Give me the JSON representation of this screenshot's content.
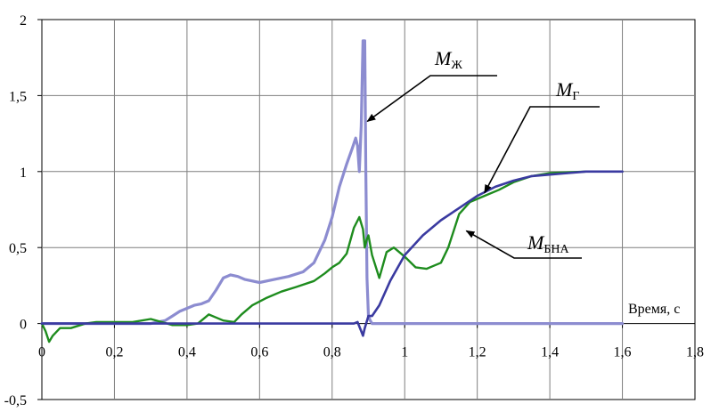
{
  "chart_data": {
    "type": "line",
    "title": "",
    "xlabel": "Время, с",
    "ylabel": "",
    "xlim": [
      0,
      1.8
    ],
    "ylim": [
      -0.5,
      2
    ],
    "grid": true,
    "x_ticks": [
      "0",
      "0,2",
      "0,4",
      "0,6",
      "0,8",
      "1",
      "1,2",
      "1,4",
      "1,6",
      "1,8"
    ],
    "y_ticks": [
      "-0,5",
      "0",
      "0,5",
      "1",
      "1,5",
      "2"
    ],
    "colors": {
      "zh": "#8c8cd0",
      "g": "#3a3aa0",
      "bna": "#1e8c1e",
      "grid": "#7f7f7f"
    },
    "annotations": [
      {
        "series": "zh",
        "base": "M",
        "sub": "Ж"
      },
      {
        "series": "g",
        "base": "M",
        "sub": "Г"
      },
      {
        "series": "bna",
        "base": "M",
        "sub": "БНА"
      }
    ],
    "series": [
      {
        "id": "zh",
        "x": [
          0,
          0.3,
          0.34,
          0.36,
          0.38,
          0.4,
          0.42,
          0.44,
          0.46,
          0.48,
          0.5,
          0.52,
          0.54,
          0.56,
          0.6,
          0.64,
          0.68,
          0.72,
          0.75,
          0.78,
          0.8,
          0.82,
          0.84,
          0.855,
          0.865,
          0.87,
          0.875,
          0.88,
          0.885,
          0.89,
          0.893,
          0.896,
          0.9,
          0.905,
          0.91,
          0.92,
          0.93,
          0.95,
          0.98,
          1.0,
          1.6
        ],
        "y": [
          0,
          0,
          0.02,
          0.05,
          0.08,
          0.1,
          0.12,
          0.13,
          0.15,
          0.22,
          0.3,
          0.32,
          0.31,
          0.29,
          0.27,
          0.29,
          0.31,
          0.34,
          0.4,
          0.55,
          0.7,
          0.9,
          1.05,
          1.15,
          1.22,
          1.17,
          1.0,
          1.3,
          1.86,
          1.86,
          1.0,
          0.3,
          0.05,
          0.02,
          0.0,
          0.0,
          0.0,
          0.0,
          0.0,
          0.0,
          0.0
        ]
      },
      {
        "id": "g",
        "x": [
          0,
          0.86,
          0.87,
          0.88,
          0.885,
          0.89,
          0.9,
          0.91,
          0.93,
          0.96,
          1.0,
          1.05,
          1.1,
          1.15,
          1.2,
          1.25,
          1.3,
          1.35,
          1.4,
          1.45,
          1.5,
          1.6
        ],
        "y": [
          0,
          0,
          0.01,
          -0.05,
          -0.08,
          -0.03,
          0.05,
          0.05,
          0.12,
          0.28,
          0.45,
          0.58,
          0.68,
          0.76,
          0.84,
          0.9,
          0.94,
          0.97,
          0.98,
          0.99,
          1.0,
          1.0
        ]
      },
      {
        "id": "bna",
        "x": [
          0,
          0.01,
          0.02,
          0.03,
          0.05,
          0.08,
          0.12,
          0.15,
          0.2,
          0.25,
          0.3,
          0.33,
          0.36,
          0.4,
          0.43,
          0.46,
          0.48,
          0.5,
          0.53,
          0.55,
          0.58,
          0.62,
          0.66,
          0.7,
          0.75,
          0.78,
          0.8,
          0.82,
          0.84,
          0.86,
          0.875,
          0.885,
          0.89,
          0.895,
          0.9,
          0.91,
          0.93,
          0.95,
          0.97,
          1.0,
          1.03,
          1.06,
          1.08,
          1.1,
          1.12,
          1.15,
          1.18,
          1.22,
          1.26,
          1.3,
          1.35,
          1.4,
          1.5,
          1.6
        ],
        "y": [
          0,
          -0.05,
          -0.12,
          -0.08,
          -0.03,
          -0.03,
          0.0,
          0.01,
          0.01,
          0.01,
          0.03,
          0.01,
          -0.01,
          -0.01,
          0.0,
          0.06,
          0.04,
          0.02,
          0.01,
          0.06,
          0.12,
          0.17,
          0.21,
          0.24,
          0.28,
          0.33,
          0.37,
          0.4,
          0.46,
          0.63,
          0.7,
          0.62,
          0.5,
          0.55,
          0.58,
          0.45,
          0.3,
          0.47,
          0.5,
          0.44,
          0.37,
          0.36,
          0.38,
          0.4,
          0.5,
          0.72,
          0.8,
          0.84,
          0.88,
          0.93,
          0.97,
          0.99,
          1.0,
          1.0
        ]
      }
    ]
  }
}
